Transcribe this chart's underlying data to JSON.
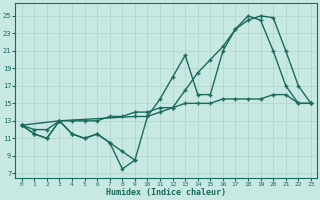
{
  "xlabel": "Humidex (Indice chaleur)",
  "bg_color": "#c8e8e4",
  "grid_color": "#b8d8d4",
  "line_color": "#1a6b5a",
  "xlim": [
    -0.5,
    23.5
  ],
  "ylim": [
    6.5,
    26.5
  ],
  "yticks": [
    7,
    9,
    11,
    13,
    15,
    17,
    19,
    21,
    23,
    25
  ],
  "xticks": [
    0,
    1,
    2,
    3,
    4,
    5,
    6,
    7,
    8,
    9,
    10,
    11,
    12,
    13,
    14,
    15,
    16,
    17,
    18,
    19,
    20,
    21,
    22,
    23
  ],
  "line1_x": [
    0,
    1,
    2,
    3,
    4,
    5,
    6,
    7,
    8,
    9,
    10,
    11,
    12,
    13,
    14,
    15,
    16,
    17,
    18,
    19,
    20,
    21,
    22,
    23
  ],
  "line1_y": [
    12.5,
    11.5,
    11.0,
    13.0,
    11.5,
    11.0,
    11.5,
    10.5,
    9.5,
    8.5,
    13.5,
    15.5,
    18.0,
    20.5,
    16.0,
    16.0,
    21.0,
    23.5,
    25.0,
    24.5,
    21.0,
    17.0,
    15.0,
    15.0
  ],
  "line2_x": [
    0,
    1,
    2,
    3,
    4,
    5,
    6,
    7,
    8,
    9,
    10,
    11,
    12,
    13,
    14,
    15,
    16,
    17,
    18,
    19,
    20,
    21,
    22,
    23
  ],
  "line2_y": [
    12.5,
    12.0,
    12.0,
    13.0,
    13.0,
    13.0,
    13.0,
    13.5,
    13.5,
    14.0,
    14.0,
    14.5,
    14.5,
    15.0,
    15.0,
    15.0,
    15.5,
    15.5,
    15.5,
    15.5,
    16.0,
    16.0,
    15.0,
    15.0
  ],
  "line3_x": [
    0,
    3,
    9,
    10,
    11,
    12,
    13,
    14,
    15,
    16,
    17,
    18,
    19,
    20,
    21,
    22,
    23
  ],
  "line3_y": [
    12.5,
    13.0,
    13.5,
    13.5,
    14.0,
    14.5,
    16.5,
    18.5,
    20.0,
    21.5,
    23.5,
    24.5,
    25.0,
    24.8,
    21.0,
    17.0,
    15.0
  ],
  "line4_x": [
    0,
    1,
    2,
    3,
    4,
    5,
    6,
    7,
    8,
    9
  ],
  "line4_y": [
    12.5,
    11.5,
    11.0,
    13.0,
    11.5,
    11.0,
    11.5,
    10.5,
    7.5,
    8.5
  ]
}
